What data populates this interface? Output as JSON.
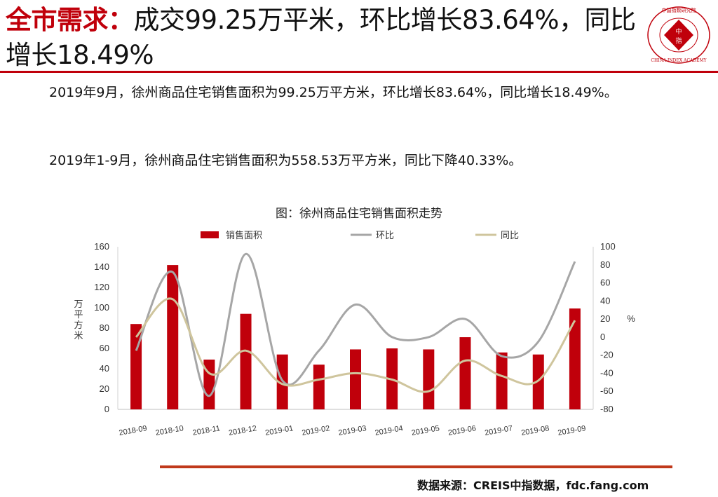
{
  "header": {
    "title_highlight": "全市需求：",
    "title_rest": "成交99.25万平米，环比增长83.64%，同比增长18.49%"
  },
  "logo": {
    "text_top": "中国指数研究院",
    "text_center_1": "中",
    "text_center_2": "指",
    "text_bottom": "CHINA INDEX ACADEMY"
  },
  "body": {
    "paragraph_1": "2019年9月，徐州商品住宅销售面积为99.25万平方米，环比增长83.64%，同比增长18.49%。",
    "paragraph_2": "2019年1-9月，徐州商品住宅销售面积为558.53万平方米，同比下降40.33%。"
  },
  "chart_title": "图：徐州商品住宅销售面积走势",
  "chart_data": {
    "type": "bar",
    "categories": [
      "2018-09",
      "2018-10",
      "2018-11",
      "2018-12",
      "2019-01",
      "2019-02",
      "2019-03",
      "2019-04",
      "2019-05",
      "2019-06",
      "2019-07",
      "2019-08",
      "2019-09"
    ],
    "series": [
      {
        "name": "销售面积",
        "type": "bar",
        "axis": "left",
        "color": "#c0000b",
        "values": [
          84,
          142,
          49,
          94,
          54,
          44,
          59,
          60,
          59,
          71,
          56,
          54,
          99.25
        ]
      },
      {
        "name": "环比",
        "type": "line",
        "axis": "right",
        "color": "#a6a6a6",
        "values": [
          -15,
          72,
          -65,
          92,
          -48,
          -15,
          36,
          0,
          0,
          20,
          -21,
          -5,
          83.64
        ]
      },
      {
        "name": "同比",
        "type": "line",
        "axis": "right",
        "color": "#cfc59d",
        "values": [
          0,
          42,
          -40,
          -15,
          -52,
          -47,
          -40,
          -47,
          -60,
          -26,
          -43,
          -48,
          18.49
        ]
      }
    ],
    "ylabel": "万平方米",
    "y2label": "%",
    "ylim": [
      0,
      160
    ],
    "yticks": [
      0,
      20,
      40,
      60,
      80,
      100,
      120,
      140,
      160
    ],
    "y2lim": [
      -80,
      100
    ],
    "y2ticks": [
      -80,
      -60,
      -40,
      -20,
      0,
      20,
      40,
      60,
      80,
      100
    ],
    "legend_position": "top",
    "grid": false
  },
  "footer": {
    "source": "数据来源：CREIS中指数据，fdc.fang.com"
  }
}
